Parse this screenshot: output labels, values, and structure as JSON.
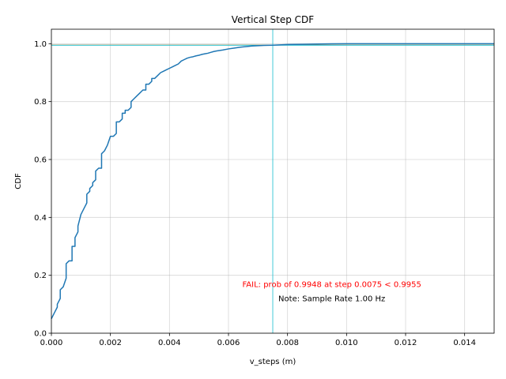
{
  "chart_data": {
    "type": "line",
    "title": "Vertical Step CDF",
    "xlabel": "v_steps (m)",
    "ylabel": "CDF",
    "xlim": [
      0,
      0.015
    ],
    "ylim": [
      0,
      1.05
    ],
    "xticks": [
      0,
      0.002,
      0.004,
      0.006,
      0.008,
      0.01,
      0.012,
      0.014
    ],
    "xtick_labels": [
      "0.000",
      "0.002",
      "0.004",
      "0.006",
      "0.008",
      "0.010",
      "0.012",
      "0.014"
    ],
    "yticks": [
      0,
      0.2,
      0.4,
      0.6,
      0.8,
      1.0
    ],
    "ytick_labels": [
      "0.0",
      "0.2",
      "0.4",
      "0.6",
      "0.8",
      "1.0"
    ],
    "grid": true,
    "series": [
      {
        "color": "#1f77b4",
        "x": [
          0,
          0.0001,
          0.0002,
          0.0002,
          0.0003,
          0.0003,
          0.0004,
          0.0005,
          0.0005,
          0.0006,
          0.0007,
          0.0007,
          0.0008,
          0.0008,
          0.0009,
          0.0009,
          0.001,
          0.0011,
          0.0012,
          0.0012,
          0.0013,
          0.0013,
          0.0014,
          0.0014,
          0.0015,
          0.0015,
          0.0016,
          0.0017,
          0.0017,
          0.0018,
          0.0019,
          0.002,
          0.0021,
          0.0022,
          0.0022,
          0.0023,
          0.0024,
          0.0024,
          0.0025,
          0.0025,
          0.0026,
          0.0027,
          0.0027,
          0.0028,
          0.0029,
          0.003,
          0.0031,
          0.0032,
          0.0032,
          0.0033,
          0.0034,
          0.0034,
          0.0035,
          0.0036,
          0.0037,
          0.0038,
          0.0039,
          0.004,
          0.0041,
          0.0042,
          0.0043,
          0.0044,
          0.0045,
          0.0046,
          0.0047,
          0.0048,
          0.0049,
          0.005,
          0.0051,
          0.0052,
          0.0053,
          0.0054,
          0.0055,
          0.0056,
          0.0058,
          0.006,
          0.0062,
          0.0064,
          0.0066,
          0.0068,
          0.007,
          0.0072,
          0.0075,
          0.0078,
          0.008,
          0.0085,
          0.009,
          0.0095,
          0.01,
          0.011,
          0.012,
          0.013,
          0.014,
          0.015
        ],
        "y": [
          0.05,
          0.07,
          0.09,
          0.1,
          0.12,
          0.15,
          0.16,
          0.19,
          0.24,
          0.25,
          0.25,
          0.3,
          0.3,
          0.33,
          0.35,
          0.37,
          0.41,
          0.43,
          0.45,
          0.48,
          0.49,
          0.5,
          0.51,
          0.52,
          0.53,
          0.56,
          0.57,
          0.57,
          0.62,
          0.63,
          0.65,
          0.68,
          0.68,
          0.69,
          0.73,
          0.73,
          0.74,
          0.76,
          0.76,
          0.77,
          0.77,
          0.78,
          0.8,
          0.81,
          0.82,
          0.83,
          0.84,
          0.84,
          0.86,
          0.86,
          0.87,
          0.88,
          0.88,
          0.89,
          0.9,
          0.905,
          0.91,
          0.915,
          0.92,
          0.925,
          0.93,
          0.94,
          0.945,
          0.95,
          0.953,
          0.955,
          0.958,
          0.96,
          0.963,
          0.965,
          0.967,
          0.97,
          0.973,
          0.975,
          0.978,
          0.982,
          0.985,
          0.988,
          0.99,
          0.992,
          0.993,
          0.994,
          0.9948,
          0.996,
          0.997,
          0.998,
          0.999,
          0.9995,
          1.0,
          1.0,
          1.0,
          1.0,
          1.0,
          1.0
        ]
      }
    ],
    "hlines": [
      {
        "y": 0.9955,
        "color": "#ff7f0e"
      },
      {
        "y": 0.9948,
        "color": "#17becf"
      }
    ],
    "vlines": [
      {
        "x": 0.0075,
        "color": "#17becf"
      }
    ],
    "annotations": [
      {
        "text": "FAIL: prob of 0.9948 at step 0.0075 < 0.9955",
        "color": "#ff0000",
        "x": 0.0095,
        "y": 0.16
      },
      {
        "text": "Note: Sample Rate 1.00 Hz",
        "color": "#000000",
        "x": 0.0095,
        "y": 0.11
      }
    ]
  }
}
